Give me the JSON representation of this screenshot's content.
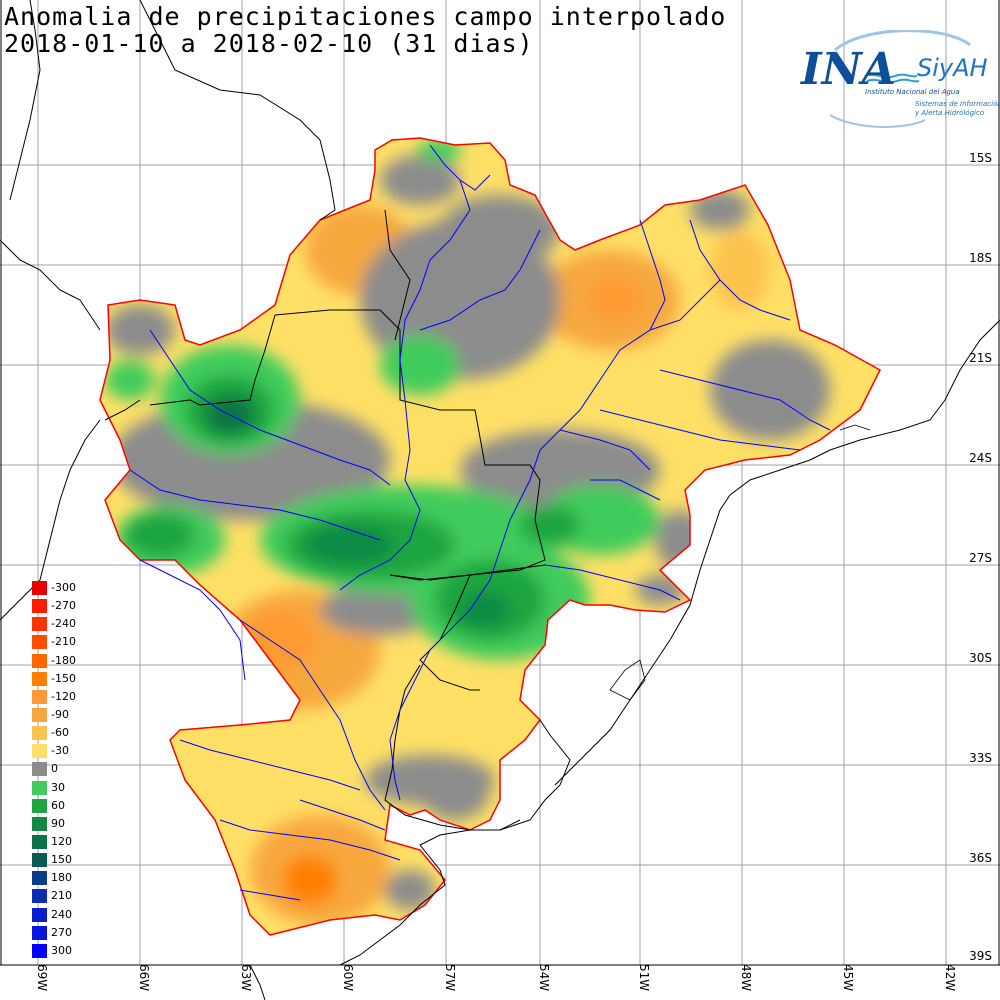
{
  "title": {
    "line1": "Anomalia de precipitaciones campo interpolado",
    "line2": "2018-01-10 a 2018-02-10 (31 dias)"
  },
  "logo": {
    "ina": "INA",
    "siyah": "SiyAH",
    "subtitle1": "Instituto Nacional del Agua",
    "subtitle2": "Sistemas de Información",
    "subtitle3": "y Alerta Hidrológico"
  },
  "latitude_labels": [
    "15S",
    "18S",
    "21S",
    "24S",
    "27S",
    "30S",
    "33S",
    "36S",
    "39S"
  ],
  "longitude_labels": [
    "69W",
    "66W",
    "63W",
    "60W",
    "57W",
    "54W",
    "51W",
    "48W",
    "45W",
    "42W"
  ],
  "legend": [
    {
      "label": "-300",
      "color": "#e60000"
    },
    {
      "label": "-270",
      "color": "#ff1a00"
    },
    {
      "label": "-240",
      "color": "#ff3300"
    },
    {
      "label": "-210",
      "color": "#ff4d00"
    },
    {
      "label": "-180",
      "color": "#ff6600"
    },
    {
      "label": "-150",
      "color": "#ff8000"
    },
    {
      "label": "-120",
      "color": "#ff9933"
    },
    {
      "label": "-90",
      "color": "#f7a83c"
    },
    {
      "label": "-60",
      "color": "#fcc34d"
    },
    {
      "label": "-30",
      "color": "#ffe066"
    },
    {
      "label": "0",
      "color": "#8c8c8c"
    },
    {
      "label": "30",
      "color": "#3fcc5c"
    },
    {
      "label": "60",
      "color": "#1fa540"
    },
    {
      "label": "90",
      "color": "#108a44"
    },
    {
      "label": "120",
      "color": "#0b7345"
    },
    {
      "label": "150",
      "color": "#0a5c52"
    },
    {
      "label": "180",
      "color": "#0a3c8c"
    },
    {
      "label": "210",
      "color": "#0a2db4"
    },
    {
      "label": "240",
      "color": "#0a1ecc"
    },
    {
      "label": "270",
      "color": "#0a14e0"
    },
    {
      "label": "300",
      "color": "#0000ff"
    }
  ],
  "colors": {
    "basin_outline": "#ff0000",
    "rivers": "#0000ff",
    "borders": "#000000",
    "grid": "#a0a0a0"
  }
}
